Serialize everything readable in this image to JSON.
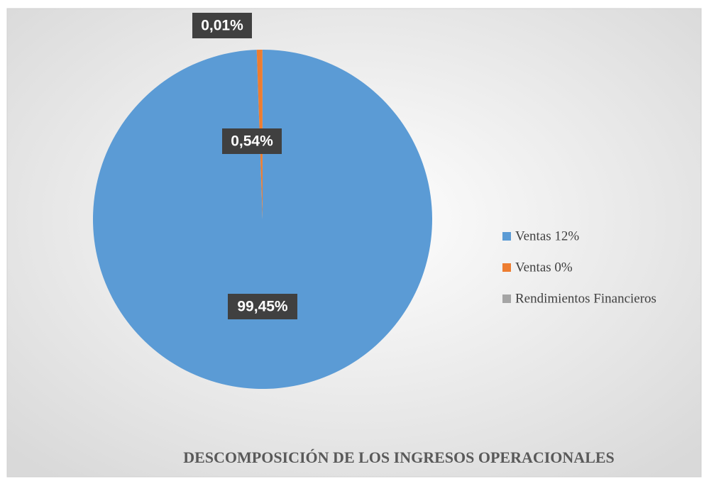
{
  "chart_data": {
    "type": "pie",
    "title": "DESCOMPOSICIÓN DE LOS INGRESOS OPERACIONALES",
    "categories": [
      "Ventas 12%",
      "Ventas 0%",
      "Rendimientos Financieros"
    ],
    "values": [
      99.45,
      0.54,
      0.01
    ],
    "value_labels": [
      "99,45%",
      "0,54%",
      "0,01%"
    ],
    "colors": [
      "#5b9bd5",
      "#ed7d31",
      "#a5a5a5"
    ],
    "legend": "right"
  }
}
